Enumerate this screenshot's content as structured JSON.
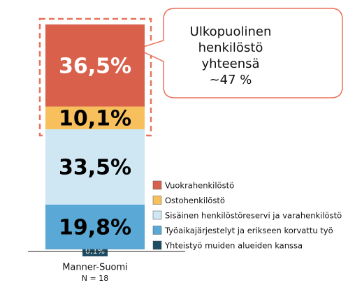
{
  "chart_data": {
    "type": "stacked_bar",
    "categories": [
      "Manner-Suomi"
    ],
    "subtitle": "N = 18",
    "ylim": [
      0,
      100
    ],
    "annotation": [
      "Ulkopuolinen",
      "henkilöstö",
      "yhteensä",
      "~47 %"
    ],
    "series": [
      {
        "name": "Vuokrahenkilöstö",
        "color": "#d9614b",
        "label_color": "#ffffff",
        "values": [
          36.5
        ],
        "value_labels": [
          "36,5%"
        ]
      },
      {
        "name": "Ostohenkilöstö",
        "color": "#f8c05c",
        "label_color": "#000000",
        "values": [
          10.1
        ],
        "value_labels": [
          "10,1%"
        ]
      },
      {
        "name": "Sisäinen henkilöstöreservi ja varahenkilöstö",
        "color": "#cfe6f3",
        "label_color": "#000000",
        "values": [
          33.5
        ],
        "value_labels": [
          "33,5%"
        ]
      },
      {
        "name": "Työaikajärjestelyt ja erikseen korvattu työ",
        "color": "#5aa8d5",
        "label_color": "#000000",
        "values": [
          19.8
        ],
        "value_labels": [
          "19,8%"
        ]
      },
      {
        "name": "Yhteistyö muiden alueiden kanssa",
        "color": "#1c4d63",
        "label_color": "#ffffff",
        "values": [
          0.1
        ],
        "value_labels": [
          "0,1%"
        ]
      }
    ]
  }
}
